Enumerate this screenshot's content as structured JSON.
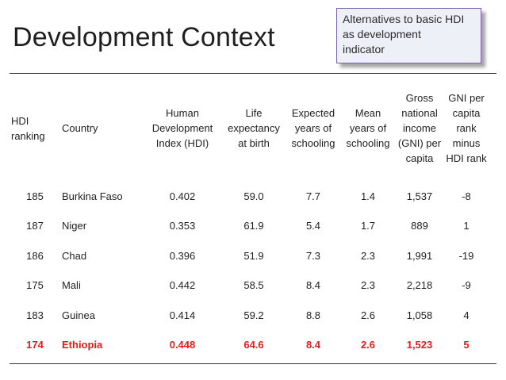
{
  "title": "Development Context",
  "callout": {
    "lines": [
      "Alternatives to basic HDI",
      "as development",
      "indicator"
    ]
  },
  "table": {
    "headers": {
      "rank": [
        "HDI",
        "ranking"
      ],
      "country": [
        "Country"
      ],
      "hdi": [
        "Human",
        "Development",
        "Index (HDI)"
      ],
      "life": [
        "Life",
        "expectancy",
        "at birth"
      ],
      "expected": [
        "Expected",
        "years of",
        "schooling"
      ],
      "mean": [
        "Mean",
        "years of",
        "schooling"
      ],
      "gni": [
        "Gross",
        "national",
        "income",
        "(GNI) per",
        "capita"
      ],
      "gni_rank": [
        "GNI per",
        "capita",
        "rank",
        "minus",
        "HDI rank"
      ]
    },
    "rows": [
      {
        "rank": "185",
        "country": "Burkina Faso",
        "hdi": "0.402",
        "life": "59.0",
        "expected": "7.7",
        "mean": "1.4",
        "gni": "1,537",
        "gni_rank": "-8"
      },
      {
        "rank": "187",
        "country": "Niger",
        "hdi": "0.353",
        "life": "61.9",
        "expected": "5.4",
        "mean": "1.7",
        "gni": "889",
        "gni_rank": "1"
      },
      {
        "rank": "186",
        "country": "Chad",
        "hdi": "0.396",
        "life": "51.9",
        "expected": "7.3",
        "mean": "2.3",
        "gni": "1,991",
        "gni_rank": "-19"
      },
      {
        "rank": "175",
        "country": "Mali",
        "hdi": "0.442",
        "life": "58.5",
        "expected": "8.4",
        "mean": "2.3",
        "gni": "2,218",
        "gni_rank": "-9"
      },
      {
        "rank": "183",
        "country": "Guinea",
        "hdi": "0.414",
        "life": "59.2",
        "expected": "8.8",
        "mean": "2.6",
        "gni": "1,058",
        "gni_rank": "4"
      },
      {
        "rank": "174",
        "country": "Ethiopia",
        "hdi": "0.448",
        "life": "64.6",
        "expected": "8.4",
        "mean": "2.6",
        "gni": "1,523",
        "gni_rank": "5"
      }
    ],
    "highlight_color": "#e31b1b"
  }
}
